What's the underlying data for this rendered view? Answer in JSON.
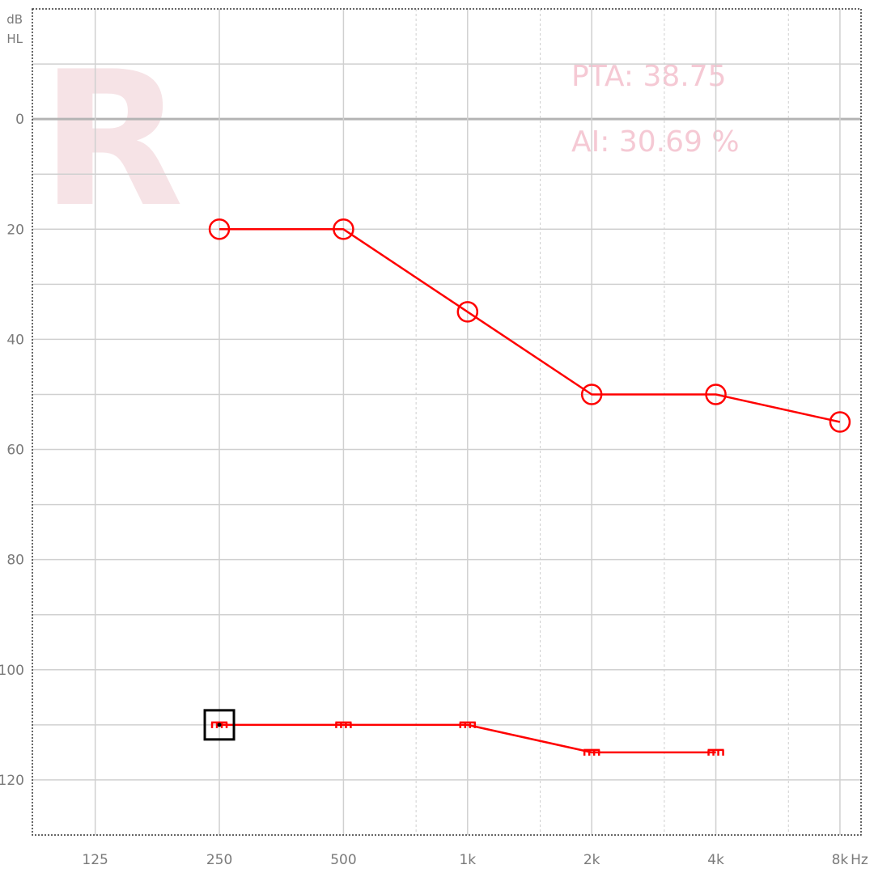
{
  "chart_data": {
    "type": "line",
    "ear_label": "R",
    "x_unit": "Hz",
    "y_unit_line1": "dB",
    "y_unit_line2": "HL",
    "x_ticks": [
      {
        "hz": 125,
        "label": "125"
      },
      {
        "hz": 250,
        "label": "250"
      },
      {
        "hz": 500,
        "label": "500"
      },
      {
        "hz": 1000,
        "label": "1k"
      },
      {
        "hz": 2000,
        "label": "2k"
      },
      {
        "hz": 4000,
        "label": "4k"
      },
      {
        "hz": 8000,
        "label": "8k"
      }
    ],
    "x_minor_ticks_hz": [
      750,
      1500,
      3000,
      6000
    ],
    "y_ticks": [
      0,
      20,
      40,
      60,
      80,
      100,
      120
    ],
    "y_minor_ticks": [
      -10,
      10,
      30,
      50,
      70,
      90,
      110
    ],
    "ylim": [
      -20,
      130
    ],
    "xlim_hz": [
      88,
      9000
    ],
    "y_inverted": true,
    "grid": true,
    "series": [
      {
        "symbol": "circle",
        "color": "#ff0000",
        "points": [
          {
            "hz": 250,
            "db": 20
          },
          {
            "hz": 500,
            "db": 20
          },
          {
            "hz": 1000,
            "db": 35
          },
          {
            "hz": 2000,
            "db": 50
          },
          {
            "hz": 4000,
            "db": 50
          },
          {
            "hz": 8000,
            "db": 55
          }
        ]
      },
      {
        "symbol": "comb",
        "color": "#ff0000",
        "points": [
          {
            "hz": 250,
            "db": 110
          },
          {
            "hz": 500,
            "db": 110
          },
          {
            "hz": 1000,
            "db": 110
          },
          {
            "hz": 2000,
            "db": 115
          },
          {
            "hz": 4000,
            "db": 115
          }
        ]
      }
    ],
    "selection": {
      "hz": 250,
      "db": 110
    },
    "pta_text": "PTA: 38.75",
    "ai_text": "AI: 30.69 %"
  }
}
